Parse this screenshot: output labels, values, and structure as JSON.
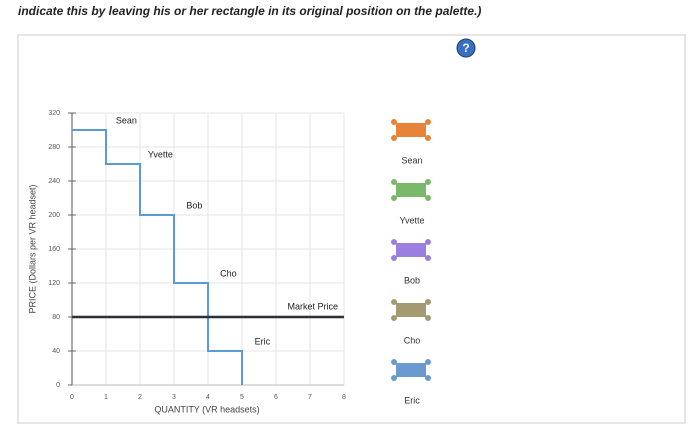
{
  "instruction": "indicate this by leaving his or her rectangle in its original position on the palette.)",
  "chart_data": {
    "type": "line",
    "xlabel": "QUANTITY (VR headsets)",
    "ylabel": "PRICE (Dollars per VR headset)",
    "xlim": [
      0,
      8
    ],
    "xticks": [
      0,
      1,
      2,
      3,
      4,
      5,
      6,
      7,
      8
    ],
    "ylim": [
      0,
      320
    ],
    "yticks": [
      0,
      40,
      80,
      120,
      160,
      200,
      240,
      280,
      320
    ],
    "grid": true,
    "series": [
      {
        "color": "#5b9bd5",
        "x": [
          0,
          1,
          1,
          2,
          2,
          3,
          3,
          4,
          4,
          5,
          5
        ],
        "values": [
          300,
          300,
          260,
          260,
          200,
          200,
          120,
          120,
          40,
          40,
          0
        ]
      },
      {
        "name": "Market Price",
        "color": "#2b2f3a",
        "x": [
          0,
          8
        ],
        "values": [
          80,
          80
        ]
      }
    ],
    "step_labels": [
      "Sean",
      "Yvette",
      "Bob",
      "Cho",
      "Eric"
    ]
  },
  "palette": [
    {
      "name": "Sean",
      "color": "#e8833a"
    },
    {
      "name": "Yvette",
      "color": "#7cb86a"
    },
    {
      "name": "Bob",
      "color": "#9b7fe0"
    },
    {
      "name": "Cho",
      "color": "#a39a72"
    },
    {
      "name": "Eric",
      "color": "#6a9ad0"
    }
  ]
}
